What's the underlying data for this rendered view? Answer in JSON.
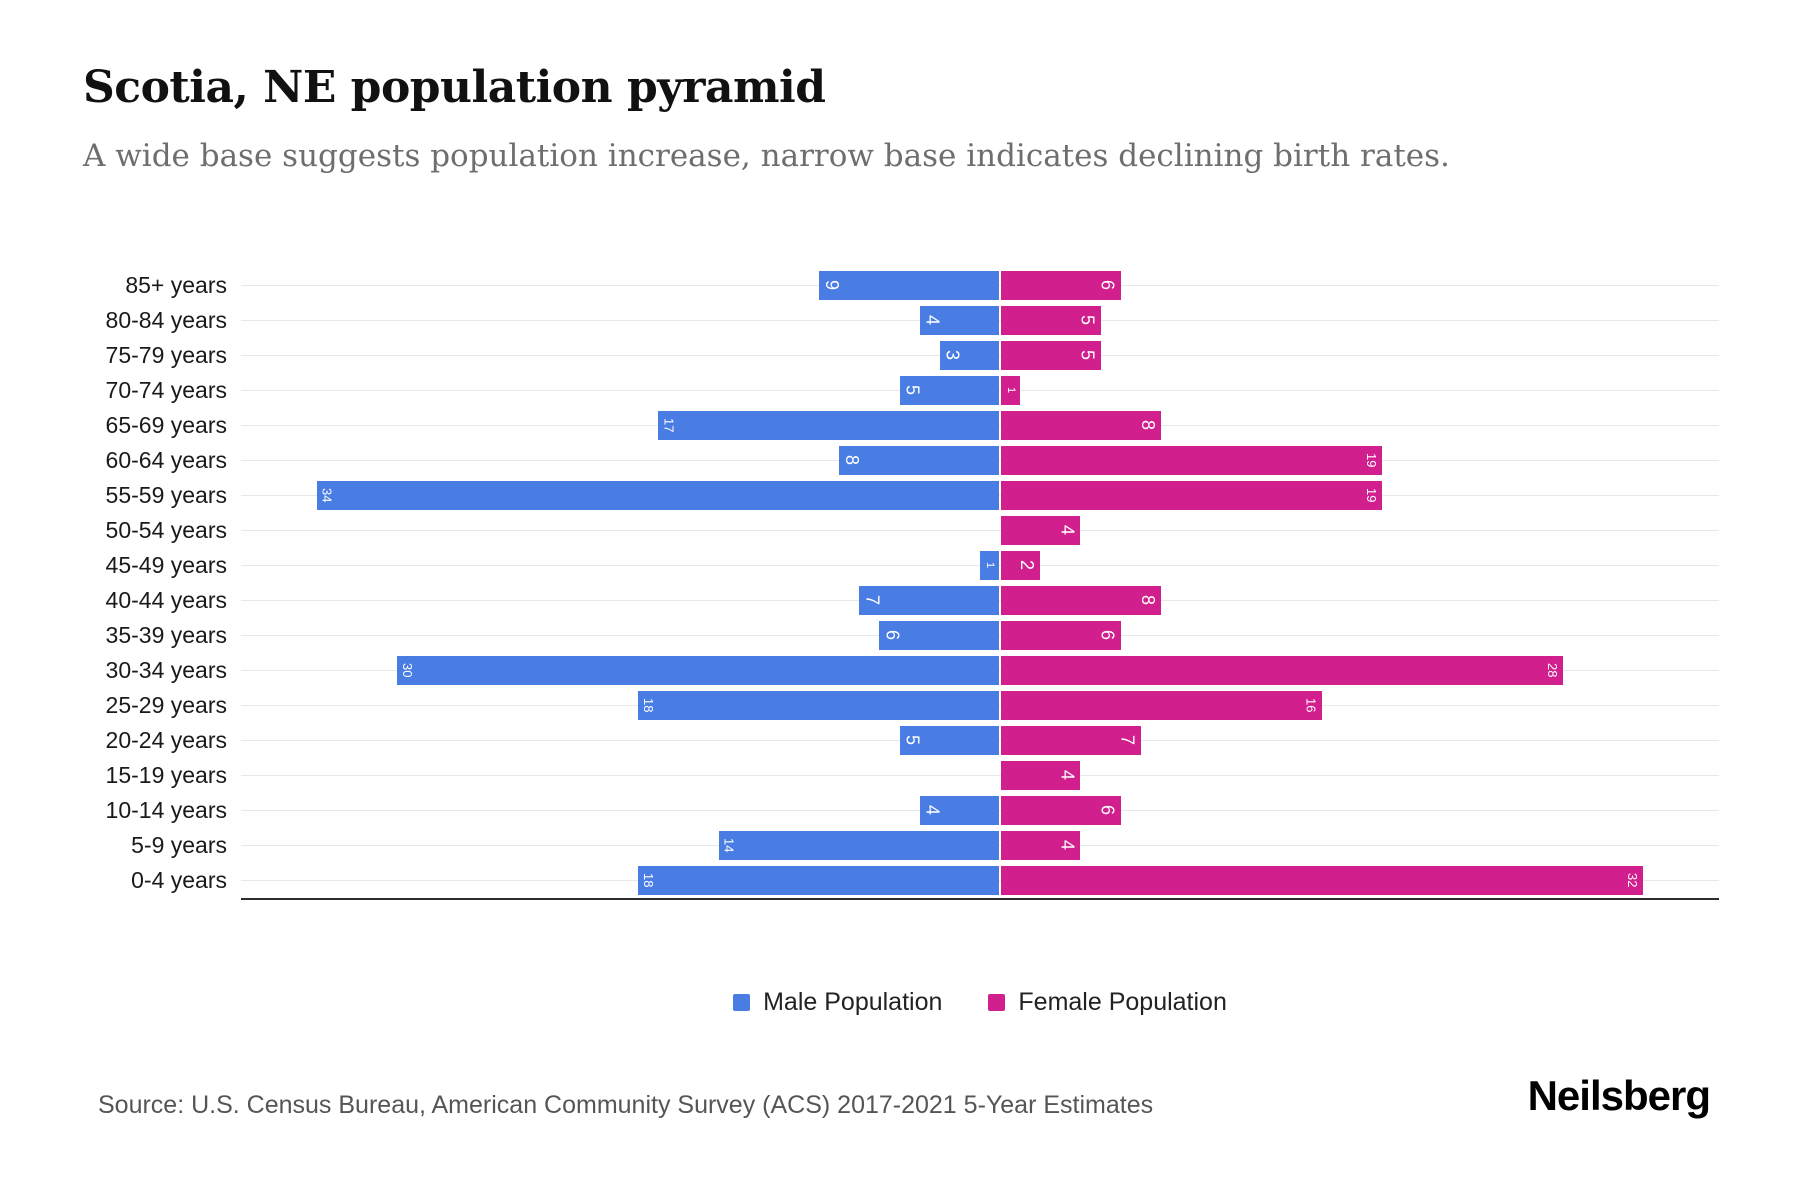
{
  "header": {
    "title": "Scotia, NE population pyramid",
    "subtitle": "A wide base suggests population increase, narrow base indicates declining birth rates."
  },
  "legend": {
    "items": [
      {
        "label": "Male Population",
        "color": "#4a7de4"
      },
      {
        "label": "Female Population",
        "color": "#d21f8e"
      }
    ]
  },
  "footer": {
    "source": "Source: U.S. Census Bureau, American Community Survey (ACS) 2017-2021 5-Year Estimates",
    "brand": "Neilsberg"
  },
  "chart_data": {
    "type": "bar",
    "variant": "population_pyramid",
    "title": "Scotia, NE population pyramid",
    "categories": [
      "85+ years",
      "80-84 years",
      "75-79 years",
      "70-74 years",
      "65-69 years",
      "60-64 years",
      "55-59 years",
      "50-54 years",
      "45-49 years",
      "40-44 years",
      "35-39 years",
      "30-34 years",
      "25-29 years",
      "20-24 years",
      "15-19 years",
      "10-14 years",
      "5-9 years",
      "0-4 years"
    ],
    "series": [
      {
        "name": "Male Population",
        "color": "#4a7de4",
        "values": [
          9,
          4,
          3,
          5,
          17,
          8,
          34,
          0,
          1,
          7,
          6,
          30,
          18,
          5,
          0,
          4,
          14,
          18
        ]
      },
      {
        "name": "Female Population",
        "color": "#d21f8e",
        "values": [
          6,
          5,
          5,
          1,
          8,
          19,
          19,
          4,
          2,
          8,
          6,
          28,
          16,
          7,
          4,
          6,
          4,
          32
        ]
      }
    ],
    "value_labels": "inside_end_rotated_white",
    "grid": "horizontal",
    "legend_position": "bottom",
    "axis": {
      "baseline": true,
      "xlim": [
        -38,
        36
      ]
    }
  }
}
